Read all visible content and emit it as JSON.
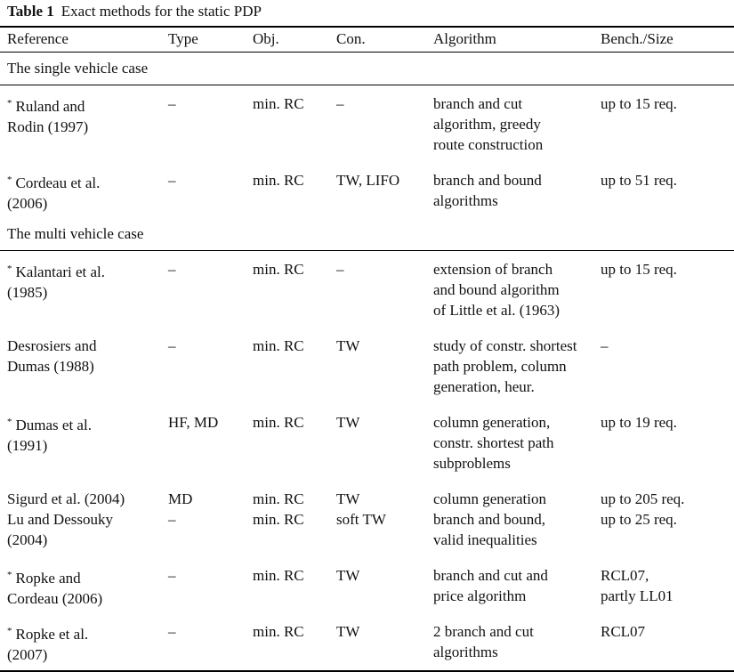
{
  "caption": {
    "label": "Table 1",
    "title": "Exact methods for the static PDP"
  },
  "headers": [
    "Reference",
    "Type",
    "Obj.",
    "Con.",
    "Algorithm",
    "Bench./Size"
  ],
  "groups": [
    {
      "title": "The single vehicle case",
      "rows": [
        {
          "marker": "*",
          "reference": "Ruland and\nRodin (1997)",
          "type": "–",
          "obj": "min. RC",
          "con": "–",
          "algorithm": "branch and cut\nalgorithm, greedy\nroute construction",
          "bench": "up to 15 req."
        },
        {
          "marker": "*",
          "reference": "Cordeau et al.\n(2006)",
          "type": "–",
          "obj": "min. RC",
          "con": "TW, LIFO",
          "algorithm": "branch and bound\nalgorithms",
          "bench": "up to 51 req."
        }
      ]
    },
    {
      "title": "The multi vehicle case",
      "rows": [
        {
          "marker": "*",
          "reference": "Kalantari et al.\n(1985)",
          "type": "–",
          "obj": "min. RC",
          "con": "–",
          "algorithm": "extension of branch\nand bound algorithm\nof Little et al. (1963)",
          "bench": "up to 15 req."
        },
        {
          "marker": "",
          "reference": "Desrosiers and\nDumas (1988)",
          "type": "–",
          "obj": "min. RC",
          "con": "TW",
          "algorithm": "study of constr. shortest\npath problem, column\ngeneration, heur.",
          "bench": "–"
        },
        {
          "marker": "*",
          "reference": "Dumas et al.\n(1991)",
          "type": "HF, MD",
          "obj": "min. RC",
          "con": "TW",
          "algorithm": "column generation,\nconstr. shortest path\nsubproblems",
          "bench": "up to 19 req."
        },
        {
          "marker": "",
          "reference": "Sigurd et al. (2004)",
          "type": "MD",
          "obj": "min. RC",
          "con": "TW",
          "algorithm": "column generation",
          "bench": "up to 205 req."
        },
        {
          "marker": "",
          "reference": "Lu and Dessouky\n(2004)",
          "type": "–",
          "obj": "min. RC",
          "con": "soft TW",
          "algorithm": "branch and bound,\nvalid inequalities",
          "bench": "up to 25 req."
        },
        {
          "marker": "*",
          "reference": "Ropke and\nCordeau (2006)",
          "type": "–",
          "obj": "min. RC",
          "con": "TW",
          "algorithm": "branch and cut and\nprice algorithm",
          "bench": "RCL07,\npartly LL01"
        },
        {
          "marker": "*",
          "reference": "Ropke et al.\n(2007)",
          "type": "–",
          "obj": "min. RC",
          "con": "TW",
          "algorithm": "2 branch and cut\nalgorithms",
          "bench": "RCL07"
        }
      ]
    }
  ]
}
